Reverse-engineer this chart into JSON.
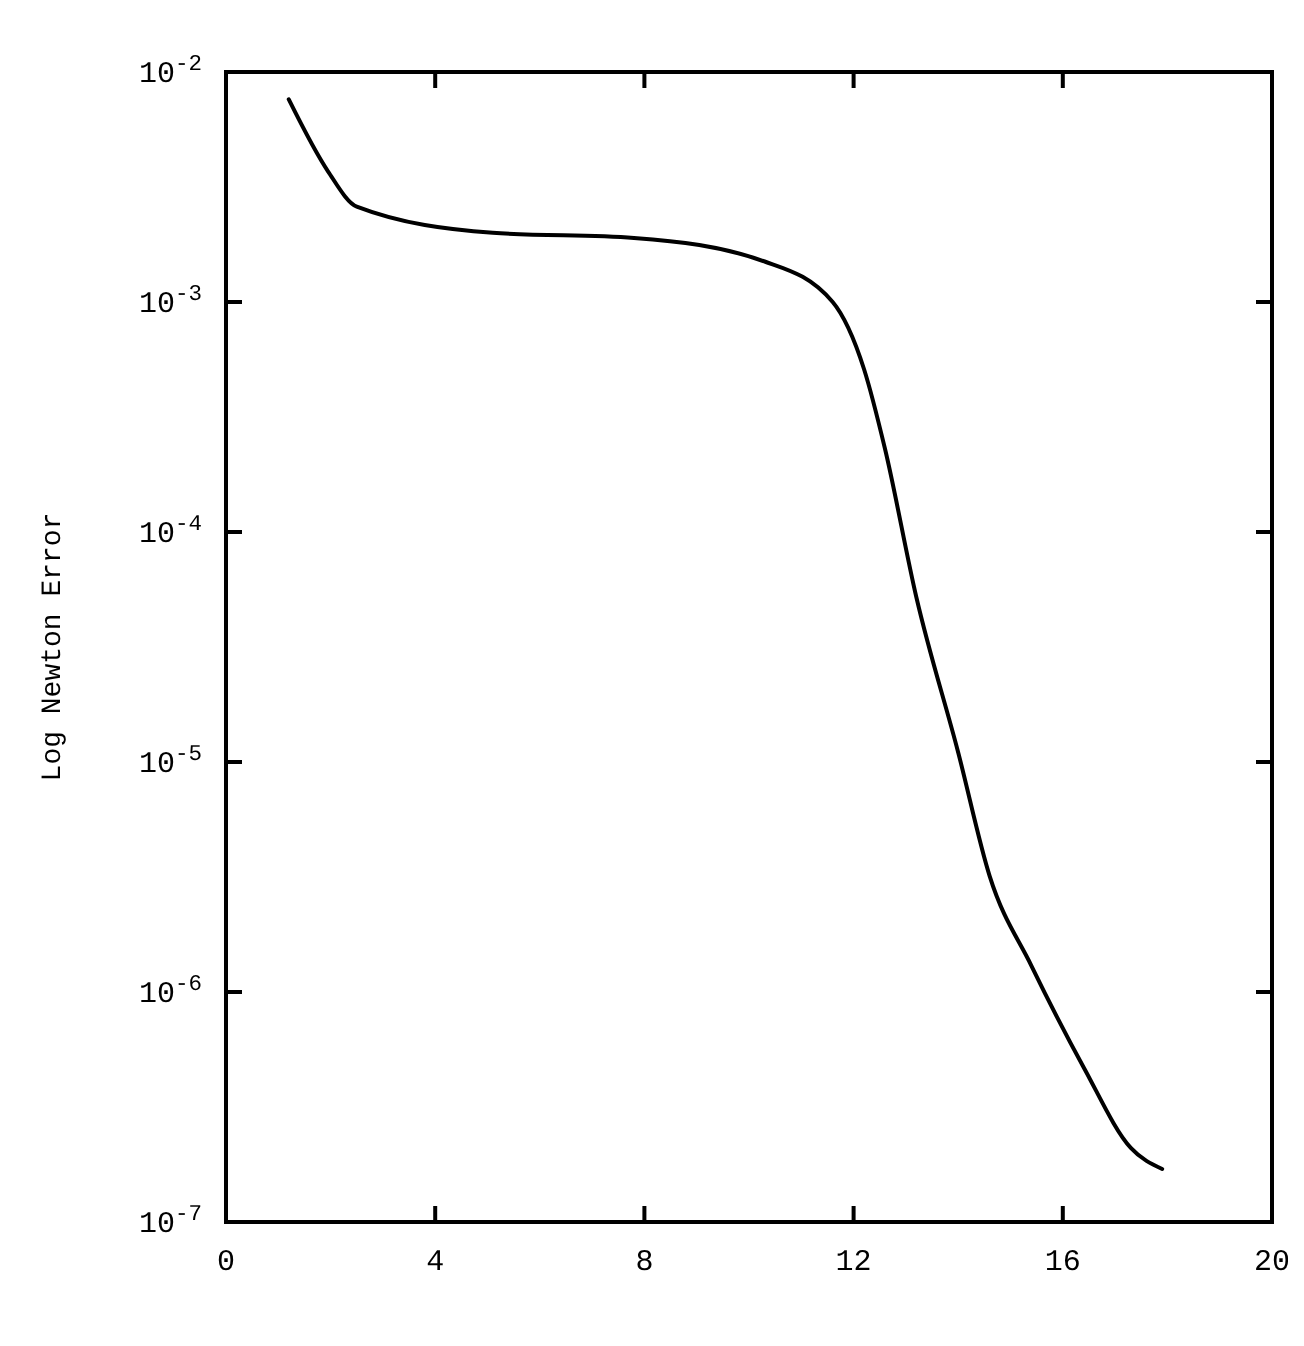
{
  "chart_data": {
    "type": "line",
    "ylabel": "Log Newton Error",
    "log": "y",
    "xlim": [
      0,
      20
    ],
    "xticks": [
      0,
      4,
      8,
      12,
      16,
      20
    ],
    "ylim": [
      1e-07,
      0.01
    ],
    "yticks": [
      {
        "value": 0.01,
        "label": "10$^{-2}$"
      },
      {
        "value": 0.001,
        "label": "10$^{-3}$"
      },
      {
        "value": 0.0001,
        "label": "10$^{-4}$"
      },
      {
        "value": 1e-05,
        "label": "10$^{-5}$"
      },
      {
        "value": 1e-06,
        "label": "10$^{-6}$"
      },
      {
        "value": 1e-07,
        "label": "10$^{-7}$"
      }
    ],
    "grid": false,
    "line_style": "solid",
    "series": [
      {
        "color": "#000000",
        "x": [
          1.2,
          1.95,
          2.5,
          5.1,
          7.8,
          10.3,
          11.6,
          12.2,
          12.6,
          13.2,
          14.0,
          14.6,
          15.4,
          16.4,
          17.3,
          17.9
        ],
        "values": [
          0.0076,
          0.0037,
          0.0026,
          0.002,
          0.0019,
          0.0015,
          0.001,
          0.00051,
          0.00023,
          5.2e-05,
          1.1e-05,
          3.2e-06,
          1.3e-06,
          4.7e-07,
          2.1e-07,
          1.7e-07
        ]
      }
    ]
  }
}
